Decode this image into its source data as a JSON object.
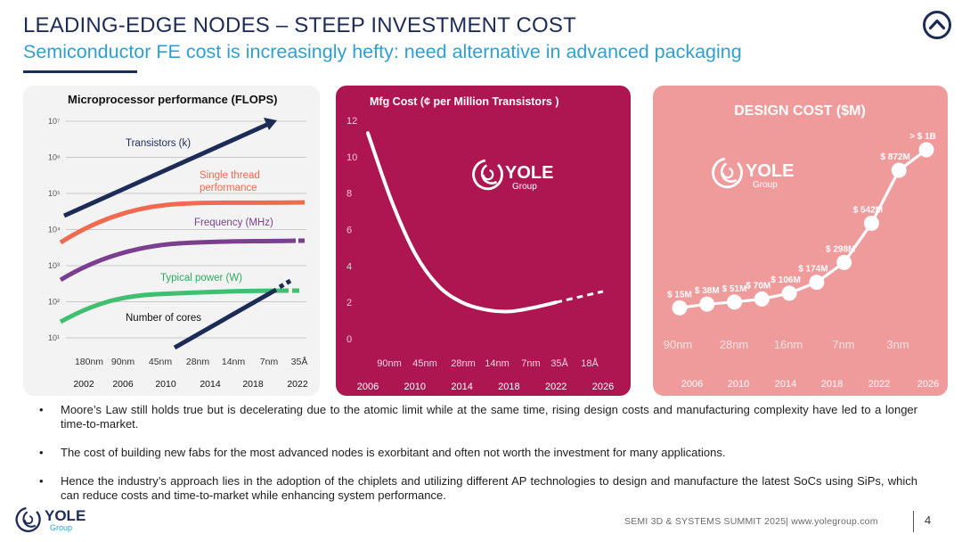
{
  "header": {
    "title": "LEADING-EDGE NODES – STEEP INVESTMENT COST",
    "subtitle": "Semiconductor FE cost is increasingly hefty: need alternative in advanced packaging"
  },
  "colors": {
    "navy": "#1d2c57",
    "accent_blue": "#2f9fd0",
    "mfg_panel": "#ad1650",
    "design_panel": "#ef9b9c",
    "perf_panel": "#f3f3f3"
  },
  "logo": {
    "name": "YOLE",
    "sub": "Group"
  },
  "chart_data": [
    {
      "type": "line",
      "title": "Microprocessor performance (FLOPS)",
      "y_scale": "log",
      "y_ticks": [
        "10⁷",
        "10⁶",
        "10⁵",
        "10⁴",
        "10³",
        "10²",
        "10¹"
      ],
      "node_labels": [
        "180nm",
        "90nm",
        "45nm",
        "28nm",
        "14nm",
        "7nm",
        "35Å"
      ],
      "years": [
        "2002",
        "2006",
        "2010",
        "2014",
        "2018",
        "2022"
      ],
      "series": [
        {
          "name": "Transistors (k)",
          "color": "#1d2c57"
        },
        {
          "name": "Single thread performance",
          "color": "#f06a4f"
        },
        {
          "name": "Frequency (MHz)",
          "color": "#7a3f8f"
        },
        {
          "name": "Typical power (W)",
          "color": "#3fbf6f"
        },
        {
          "name": "Number of cores",
          "color": "#1d2c57"
        }
      ]
    },
    {
      "type": "line",
      "title": "Mfg Cost (¢ per Million Transistors )",
      "y_ticks": [
        12,
        10,
        8,
        6,
        4,
        2,
        0
      ],
      "ylim": [
        0,
        12
      ],
      "node_labels": [
        "90nm",
        "45nm",
        "28nm",
        "14nm",
        "7nm",
        "35Å",
        "18Å"
      ],
      "years": [
        "2006",
        "2010",
        "2014",
        "2018",
        "2022",
        "2026"
      ],
      "x": [
        2006,
        2008,
        2010,
        2012,
        2014,
        2016,
        2018,
        2020,
        2022,
        2024,
        2026
      ],
      "values": [
        11.3,
        7.6,
        4.7,
        2.9,
        2.0,
        1.6,
        1.5,
        1.7,
        2.0,
        2.3,
        2.6
      ],
      "projected_from": 2022
    },
    {
      "type": "line",
      "title": "DESIGN COST ($M)",
      "node_labels": [
        "90nm",
        "28nm",
        "16nm",
        "7nm",
        "3nm"
      ],
      "years": [
        "2006",
        "2010",
        "2014",
        "2018",
        "2022",
        "2026"
      ],
      "points": [
        {
          "label": "$ 15M",
          "value": 15
        },
        {
          "label": "$ 38M",
          "value": 38
        },
        {
          "label": "$ 51M",
          "value": 51
        },
        {
          "label": "$ 70M",
          "value": 70
        },
        {
          "label": "$ 106M",
          "value": 106
        },
        {
          "label": "$ 174M",
          "value": 174
        },
        {
          "label": "$ 298M",
          "value": 298
        },
        {
          "label": "$ 542M",
          "value": 542
        },
        {
          "label": "$ 872M",
          "value": 872
        },
        {
          "label": "> $ 1B",
          "value": 1000
        }
      ]
    }
  ],
  "bullets": [
    "Moore’s Law still holds true but is decelerating due to the atomic limit while at the same time, rising design costs and manufacturing complexity have led to a longer time-to-market.",
    "The cost of building new fabs for the most advanced nodes is exorbitant and often not worth the investment for many applications.",
    "Hence the industry’s approach lies in the adoption of the chiplets and utilizing different AP technologies to design and manufacture the latest SoCs using SiPs, which can reduce costs and time-to-market while enhancing system performance."
  ],
  "bullet_symbol": "•",
  "footer": {
    "text": "SEMI 3D & SYSTEMS SUMMIT 2025| www.yolegroup.com",
    "page_number": "4"
  }
}
